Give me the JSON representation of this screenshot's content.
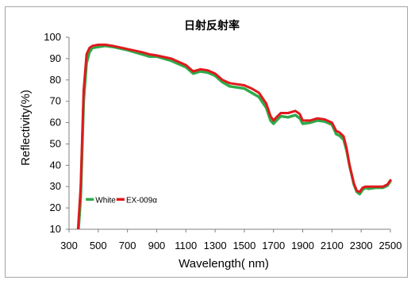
{
  "chart_data": {
    "type": "line",
    "title": "日射反射率",
    "xlabel": "Wavelength( nm)",
    "ylabel": "Reflectivity(%)",
    "xlim": [
      300,
      2500
    ],
    "ylim": [
      10,
      100
    ],
    "xticks": [
      300,
      500,
      700,
      900,
      1100,
      1300,
      1500,
      1700,
      1900,
      2100,
      2300,
      2500
    ],
    "yticks": [
      10,
      20,
      30,
      40,
      50,
      60,
      70,
      80,
      90,
      100
    ],
    "grid": false,
    "legend_position": "bottom-left",
    "series": [
      {
        "name": "White",
        "color": "#2eaa4a",
        "x": [
          360,
          380,
          400,
          420,
          440,
          460,
          500,
          550,
          600,
          700,
          800,
          850,
          900,
          1000,
          1100,
          1150,
          1200,
          1250,
          1300,
          1350,
          1400,
          1450,
          1500,
          1550,
          1600,
          1650,
          1680,
          1700,
          1720,
          1750,
          1800,
          1850,
          1880,
          1900,
          1950,
          2000,
          2050,
          2100,
          2130,
          2150,
          2180,
          2200,
          2220,
          2250,
          2270,
          2290,
          2310,
          2330,
          2350,
          2400,
          2450,
          2480,
          2500
        ],
        "values": [
          5,
          25,
          70,
          88,
          93,
          95,
          95.5,
          96,
          95.5,
          94,
          92,
          91,
          91,
          89,
          86,
          83,
          84,
          83.5,
          82,
          79,
          77,
          76.5,
          76,
          74,
          72,
          67,
          61,
          59.5,
          61,
          63,
          62.5,
          63.5,
          62,
          59.5,
          60,
          61,
          60.5,
          59,
          54.5,
          54,
          52,
          47,
          40,
          31,
          27.5,
          26.5,
          28.5,
          29.5,
          29,
          29.5,
          29.5,
          30.5,
          32.5
        ]
      },
      {
        "name": "EX-009α",
        "color": "#e0191d",
        "x": [
          360,
          380,
          400,
          420,
          440,
          460,
          500,
          550,
          600,
          700,
          800,
          850,
          900,
          1000,
          1100,
          1150,
          1200,
          1250,
          1300,
          1350,
          1400,
          1450,
          1500,
          1550,
          1600,
          1650,
          1680,
          1700,
          1720,
          1750,
          1800,
          1850,
          1880,
          1900,
          1950,
          2000,
          2050,
          2100,
          2130,
          2150,
          2180,
          2200,
          2220,
          2250,
          2270,
          2290,
          2310,
          2330,
          2350,
          2400,
          2450,
          2480,
          2500
        ],
        "values": [
          8,
          30,
          75,
          92,
          95,
          96,
          96.5,
          96.5,
          96,
          94.5,
          93,
          92,
          91.5,
          90,
          87,
          84,
          85,
          84.5,
          83,
          80,
          78.5,
          78,
          77.5,
          76,
          74,
          69,
          63,
          61,
          62.5,
          64.5,
          64.5,
          65.5,
          64,
          61,
          61,
          62,
          61.5,
          60,
          56,
          55.5,
          53.5,
          48,
          40,
          31.5,
          28,
          27.5,
          29.5,
          30,
          30,
          30,
          30,
          31,
          33
        ]
      }
    ]
  }
}
